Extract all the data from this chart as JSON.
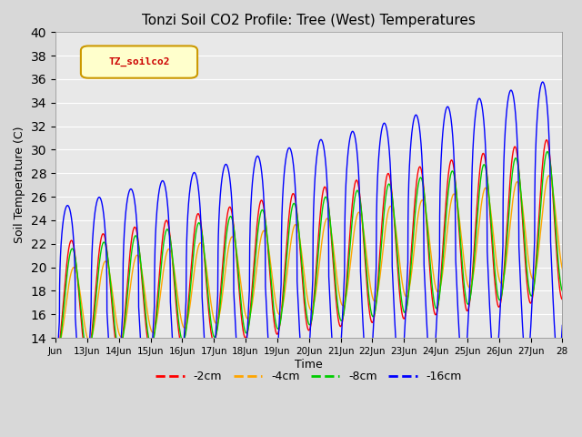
{
  "title": "Tonzi Soil CO2 Profile: Tree (West) Temperatures",
  "xlabel": "Time",
  "ylabel": "Soil Temperature (C)",
  "ylim": [
    14,
    40
  ],
  "yticks": [
    14,
    16,
    18,
    20,
    22,
    24,
    26,
    28,
    30,
    32,
    34,
    36,
    38,
    40
  ],
  "legend_label": "TZ_soilco2",
  "series": [
    "-2cm",
    "-4cm",
    "-8cm",
    "-16cm"
  ],
  "colors": [
    "#ff0000",
    "#ffa500",
    "#00cc00",
    "#0000ff"
  ],
  "plot_bg": "#e8e8e8",
  "fig_bg": "#d8d8d8",
  "grid_color": "#ffffff",
  "x_start_day": 12.0,
  "x_end_day": 28.0,
  "xtick_labels": [
    "Jun",
    "13Jun",
    "14Jun",
    "15Jun",
    "16Jun",
    "17Jun",
    "18Jun",
    "19Jun",
    "20Jun",
    "21Jun",
    "22Jun",
    "23Jun",
    "24Jun",
    "25Jun",
    "26Jun",
    "27Jun",
    "28"
  ],
  "xtick_positions": [
    12,
    13,
    14,
    15,
    16,
    17,
    18,
    19,
    20,
    21,
    22,
    23,
    24,
    25,
    26,
    27,
    28
  ]
}
